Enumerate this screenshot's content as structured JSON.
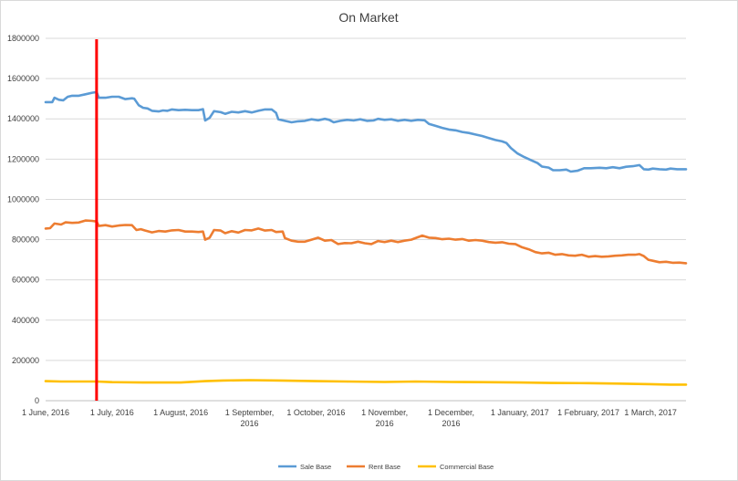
{
  "chart_data": {
    "type": "line",
    "title": "On Market",
    "xlabel": "",
    "ylabel": "",
    "ylim": [
      0,
      1800000
    ],
    "y_ticks": [
      0,
      200000,
      400000,
      600000,
      800000,
      1000000,
      1200000,
      1400000,
      1600000,
      1800000
    ],
    "x_range": [
      "2016-06-01",
      "2017-03-17"
    ],
    "x_tick_dates": [
      "2016-06-01",
      "2016-07-01",
      "2016-08-01",
      "2016-09-01",
      "2016-10-01",
      "2016-11-01",
      "2016-12-01",
      "2017-01-01",
      "2017-02-01",
      "2017-03-01"
    ],
    "x_tick_labels": [
      [
        "1 June, 2016"
      ],
      [
        "1 July, 2016"
      ],
      [
        "1 August, 2016"
      ],
      [
        "1 September,",
        "2016"
      ],
      [
        "1 October, 2016"
      ],
      [
        "1 November,",
        "2016"
      ],
      [
        "1 December,",
        "2016"
      ],
      [
        "1 January, 2017"
      ],
      [
        "1 February, 2017"
      ],
      [
        "1 March, 2017"
      ]
    ],
    "gridlines": true,
    "legend_position": "bottom",
    "marker_line": {
      "date": "2016-06-24",
      "color": "#ff0000"
    },
    "series": [
      {
        "name": "Sale Base",
        "color": "#5b9bd5",
        "points": [
          [
            "2016-06-01",
            1483000
          ],
          [
            "2016-06-04",
            1483000
          ],
          [
            "2016-06-05",
            1505000
          ],
          [
            "2016-06-07",
            1495000
          ],
          [
            "2016-06-09",
            1492000
          ],
          [
            "2016-06-11",
            1510000
          ],
          [
            "2016-06-13",
            1515000
          ],
          [
            "2016-06-16",
            1515000
          ],
          [
            "2016-06-19",
            1522000
          ],
          [
            "2016-06-22",
            1530000
          ],
          [
            "2016-06-24",
            1533000
          ],
          [
            "2016-06-25",
            1505000
          ],
          [
            "2016-06-28",
            1505000
          ],
          [
            "2016-07-01",
            1510000
          ],
          [
            "2016-07-04",
            1510000
          ],
          [
            "2016-07-07",
            1498000
          ],
          [
            "2016-07-10",
            1502000
          ],
          [
            "2016-07-11",
            1500000
          ],
          [
            "2016-07-13",
            1468000
          ],
          [
            "2016-07-15",
            1455000
          ],
          [
            "2016-07-17",
            1452000
          ],
          [
            "2016-07-19",
            1440000
          ],
          [
            "2016-07-22",
            1437000
          ],
          [
            "2016-07-24",
            1442000
          ],
          [
            "2016-07-26",
            1440000
          ],
          [
            "2016-07-28",
            1447000
          ],
          [
            "2016-07-31",
            1443000
          ],
          [
            "2016-08-03",
            1445000
          ],
          [
            "2016-08-06",
            1443000
          ],
          [
            "2016-08-09",
            1443000
          ],
          [
            "2016-08-11",
            1448000
          ],
          [
            "2016-08-12",
            1392000
          ],
          [
            "2016-08-14",
            1405000
          ],
          [
            "2016-08-16",
            1438000
          ],
          [
            "2016-08-19",
            1433000
          ],
          [
            "2016-08-21",
            1425000
          ],
          [
            "2016-08-24",
            1435000
          ],
          [
            "2016-08-27",
            1432000
          ],
          [
            "2016-08-30",
            1438000
          ],
          [
            "2016-09-02",
            1432000
          ],
          [
            "2016-09-05",
            1440000
          ],
          [
            "2016-09-08",
            1447000
          ],
          [
            "2016-09-11",
            1447000
          ],
          [
            "2016-09-13",
            1430000
          ],
          [
            "2016-09-14",
            1398000
          ],
          [
            "2016-09-17",
            1390000
          ],
          [
            "2016-09-20",
            1383000
          ],
          [
            "2016-09-23",
            1388000
          ],
          [
            "2016-09-26",
            1390000
          ],
          [
            "2016-09-29",
            1398000
          ],
          [
            "2016-10-02",
            1393000
          ],
          [
            "2016-10-05",
            1400000
          ],
          [
            "2016-10-07",
            1395000
          ],
          [
            "2016-10-09",
            1383000
          ],
          [
            "2016-10-12",
            1390000
          ],
          [
            "2016-10-15",
            1395000
          ],
          [
            "2016-10-18",
            1392000
          ],
          [
            "2016-10-21",
            1398000
          ],
          [
            "2016-10-24",
            1390000
          ],
          [
            "2016-10-27",
            1392000
          ],
          [
            "2016-10-29",
            1400000
          ],
          [
            "2016-11-01",
            1395000
          ],
          [
            "2016-11-04",
            1398000
          ],
          [
            "2016-11-07",
            1390000
          ],
          [
            "2016-11-10",
            1395000
          ],
          [
            "2016-11-13",
            1390000
          ],
          [
            "2016-11-16",
            1395000
          ],
          [
            "2016-11-19",
            1393000
          ],
          [
            "2016-11-21",
            1375000
          ],
          [
            "2016-11-24",
            1365000
          ],
          [
            "2016-11-27",
            1355000
          ],
          [
            "2016-11-30",
            1347000
          ],
          [
            "2016-12-03",
            1343000
          ],
          [
            "2016-12-06",
            1335000
          ],
          [
            "2016-12-09",
            1330000
          ],
          [
            "2016-12-12",
            1322000
          ],
          [
            "2016-12-15",
            1315000
          ],
          [
            "2016-12-18",
            1305000
          ],
          [
            "2016-12-21",
            1295000
          ],
          [
            "2016-12-24",
            1288000
          ],
          [
            "2016-12-26",
            1280000
          ],
          [
            "2016-12-28",
            1255000
          ],
          [
            "2016-12-31",
            1228000
          ],
          [
            "2017-01-03",
            1210000
          ],
          [
            "2017-01-06",
            1195000
          ],
          [
            "2017-01-09",
            1180000
          ],
          [
            "2017-01-11",
            1163000
          ],
          [
            "2017-01-14",
            1158000
          ],
          [
            "2017-01-16",
            1145000
          ],
          [
            "2017-01-19",
            1145000
          ],
          [
            "2017-01-22",
            1148000
          ],
          [
            "2017-01-24",
            1138000
          ],
          [
            "2017-01-27",
            1142000
          ],
          [
            "2017-01-30",
            1155000
          ],
          [
            "2017-02-02",
            1155000
          ],
          [
            "2017-02-06",
            1157000
          ],
          [
            "2017-02-09",
            1155000
          ],
          [
            "2017-02-12",
            1160000
          ],
          [
            "2017-02-15",
            1155000
          ],
          [
            "2017-02-18",
            1162000
          ],
          [
            "2017-02-21",
            1165000
          ],
          [
            "2017-02-24",
            1170000
          ],
          [
            "2017-02-26",
            1150000
          ],
          [
            "2017-02-28",
            1148000
          ],
          [
            "2017-03-02",
            1153000
          ],
          [
            "2017-03-05",
            1150000
          ],
          [
            "2017-03-08",
            1148000
          ],
          [
            "2017-03-10",
            1153000
          ],
          [
            "2017-03-13",
            1150000
          ],
          [
            "2017-03-17",
            1150000
          ]
        ]
      },
      {
        "name": "Rent Base",
        "color": "#ed7d31",
        "points": [
          [
            "2016-06-01",
            855000
          ],
          [
            "2016-06-03",
            857000
          ],
          [
            "2016-06-05",
            880000
          ],
          [
            "2016-06-08",
            875000
          ],
          [
            "2016-06-10",
            886000
          ],
          [
            "2016-06-13",
            883000
          ],
          [
            "2016-06-16",
            885000
          ],
          [
            "2016-06-19",
            895000
          ],
          [
            "2016-06-22",
            893000
          ],
          [
            "2016-06-24",
            890000
          ],
          [
            "2016-06-25",
            868000
          ],
          [
            "2016-06-28",
            872000
          ],
          [
            "2016-07-01",
            865000
          ],
          [
            "2016-07-04",
            870000
          ],
          [
            "2016-07-07",
            873000
          ],
          [
            "2016-07-10",
            872000
          ],
          [
            "2016-07-12",
            848000
          ],
          [
            "2016-07-14",
            852000
          ],
          [
            "2016-07-16",
            845000
          ],
          [
            "2016-07-19",
            836000
          ],
          [
            "2016-07-22",
            843000
          ],
          [
            "2016-07-25",
            840000
          ],
          [
            "2016-07-28",
            846000
          ],
          [
            "2016-07-31",
            848000
          ],
          [
            "2016-08-03",
            840000
          ],
          [
            "2016-08-06",
            840000
          ],
          [
            "2016-08-09",
            838000
          ],
          [
            "2016-08-11",
            840000
          ],
          [
            "2016-08-12",
            800000
          ],
          [
            "2016-08-14",
            810000
          ],
          [
            "2016-08-16",
            848000
          ],
          [
            "2016-08-19",
            845000
          ],
          [
            "2016-08-21",
            832000
          ],
          [
            "2016-08-24",
            842000
          ],
          [
            "2016-08-27",
            835000
          ],
          [
            "2016-08-30",
            848000
          ],
          [
            "2016-09-02",
            846000
          ],
          [
            "2016-09-05",
            855000
          ],
          [
            "2016-09-08",
            845000
          ],
          [
            "2016-09-11",
            848000
          ],
          [
            "2016-09-13",
            838000
          ],
          [
            "2016-09-16",
            840000
          ],
          [
            "2016-09-17",
            808000
          ],
          [
            "2016-09-20",
            795000
          ],
          [
            "2016-09-23",
            790000
          ],
          [
            "2016-09-26",
            790000
          ],
          [
            "2016-09-29",
            800000
          ],
          [
            "2016-10-02",
            810000
          ],
          [
            "2016-10-05",
            795000
          ],
          [
            "2016-10-08",
            798000
          ],
          [
            "2016-10-11",
            778000
          ],
          [
            "2016-10-14",
            783000
          ],
          [
            "2016-10-17",
            782000
          ],
          [
            "2016-10-20",
            790000
          ],
          [
            "2016-10-23",
            782000
          ],
          [
            "2016-10-26",
            778000
          ],
          [
            "2016-10-29",
            793000
          ],
          [
            "2016-11-01",
            788000
          ],
          [
            "2016-11-04",
            795000
          ],
          [
            "2016-11-07",
            788000
          ],
          [
            "2016-11-10",
            795000
          ],
          [
            "2016-11-13",
            800000
          ],
          [
            "2016-11-16",
            812000
          ],
          [
            "2016-11-18",
            820000
          ],
          [
            "2016-11-21",
            810000
          ],
          [
            "2016-11-24",
            808000
          ],
          [
            "2016-11-27",
            802000
          ],
          [
            "2016-11-30",
            805000
          ],
          [
            "2016-12-03",
            800000
          ],
          [
            "2016-12-06",
            803000
          ],
          [
            "2016-12-09",
            795000
          ],
          [
            "2016-12-12",
            798000
          ],
          [
            "2016-12-15",
            795000
          ],
          [
            "2016-12-18",
            788000
          ],
          [
            "2016-12-21",
            785000
          ],
          [
            "2016-12-24",
            787000
          ],
          [
            "2016-12-27",
            780000
          ],
          [
            "2016-12-30",
            778000
          ],
          [
            "2017-01-02",
            762000
          ],
          [
            "2017-01-05",
            752000
          ],
          [
            "2017-01-08",
            738000
          ],
          [
            "2017-01-11",
            732000
          ],
          [
            "2017-01-14",
            735000
          ],
          [
            "2017-01-17",
            725000
          ],
          [
            "2017-01-20",
            728000
          ],
          [
            "2017-01-23",
            722000
          ],
          [
            "2017-01-26",
            720000
          ],
          [
            "2017-01-29",
            725000
          ],
          [
            "2017-02-01",
            715000
          ],
          [
            "2017-02-04",
            718000
          ],
          [
            "2017-02-07",
            715000
          ],
          [
            "2017-02-10",
            717000
          ],
          [
            "2017-02-13",
            720000
          ],
          [
            "2017-02-16",
            722000
          ],
          [
            "2017-02-19",
            725000
          ],
          [
            "2017-02-22",
            725000
          ],
          [
            "2017-02-24",
            728000
          ],
          [
            "2017-02-26",
            718000
          ],
          [
            "2017-02-28",
            700000
          ],
          [
            "2017-03-02",
            695000
          ],
          [
            "2017-03-05",
            688000
          ],
          [
            "2017-03-08",
            690000
          ],
          [
            "2017-03-11",
            685000
          ],
          [
            "2017-03-14",
            686000
          ],
          [
            "2017-03-17",
            683000
          ]
        ]
      },
      {
        "name": "Commercial Base",
        "color": "#ffc000",
        "points": [
          [
            "2016-06-01",
            97000
          ],
          [
            "2016-06-08",
            95000
          ],
          [
            "2016-06-16",
            95000
          ],
          [
            "2016-06-24",
            95000
          ],
          [
            "2016-07-01",
            92000
          ],
          [
            "2016-07-15",
            90000
          ],
          [
            "2016-08-01",
            90000
          ],
          [
            "2016-08-12",
            97000
          ],
          [
            "2016-08-20",
            100000
          ],
          [
            "2016-09-01",
            102000
          ],
          [
            "2016-09-15",
            100000
          ],
          [
            "2016-10-01",
            97000
          ],
          [
            "2016-10-15",
            95000
          ],
          [
            "2016-11-01",
            93000
          ],
          [
            "2016-11-15",
            95000
          ],
          [
            "2016-12-01",
            93000
          ],
          [
            "2016-12-15",
            92000
          ],
          [
            "2017-01-01",
            90000
          ],
          [
            "2017-01-15",
            88000
          ],
          [
            "2017-02-01",
            87000
          ],
          [
            "2017-02-15",
            85000
          ],
          [
            "2017-03-01",
            82000
          ],
          [
            "2017-03-10",
            80000
          ],
          [
            "2017-03-17",
            80000
          ]
        ]
      }
    ]
  }
}
